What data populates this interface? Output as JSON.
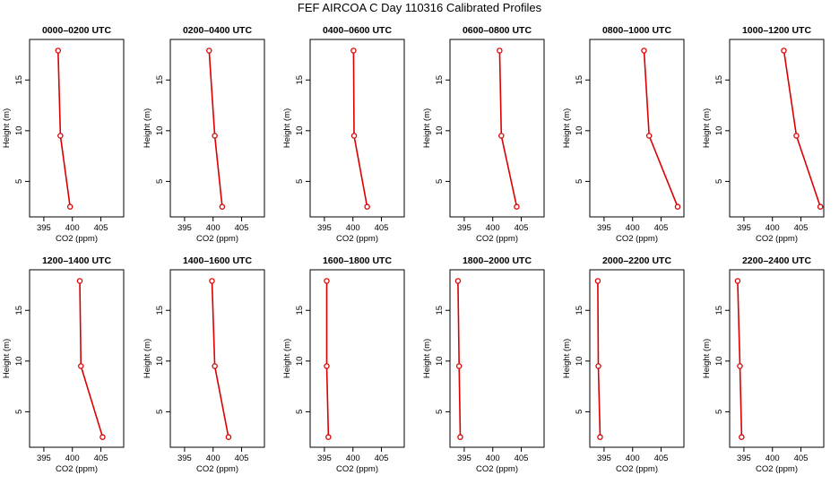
{
  "title": "FEF AIRCOA C  Day 110316  Calibrated Profiles",
  "colors": {
    "series": "#dd0000",
    "axis": "#000000"
  },
  "chart_data": [
    {
      "type": "line",
      "title": "0000–0200 UTC",
      "xlabel": "CO2 (ppm)",
      "ylabel": "Height (m)",
      "xlim": [
        392.5,
        409
      ],
      "ylim": [
        1.5,
        19
      ],
      "xticks": [
        395,
        400,
        405
      ],
      "yticks": [
        5,
        10,
        15
      ],
      "x": [
        397.5,
        397.9,
        399.6
      ],
      "y": [
        17.9,
        9.5,
        2.5
      ]
    },
    {
      "type": "line",
      "title": "0200–0400 UTC",
      "xlabel": "CO2 (ppm)",
      "ylabel": "Height (m)",
      "xlim": [
        392.5,
        409
      ],
      "ylim": [
        1.5,
        19
      ],
      "xticks": [
        395,
        400,
        405
      ],
      "yticks": [
        5,
        10,
        15
      ],
      "x": [
        399.3,
        400.3,
        401.6
      ],
      "y": [
        17.9,
        9.5,
        2.5
      ]
    },
    {
      "type": "line",
      "title": "0400–0600 UTC",
      "xlabel": "CO2 (ppm)",
      "ylabel": "Height (m)",
      "xlim": [
        392.5,
        409
      ],
      "ylim": [
        1.5,
        19
      ],
      "xticks": [
        395,
        400,
        405
      ],
      "yticks": [
        5,
        10,
        15
      ],
      "x": [
        400.1,
        400.2,
        402.5
      ],
      "y": [
        17.9,
        9.5,
        2.5
      ]
    },
    {
      "type": "line",
      "title": "0600–0800 UTC",
      "xlabel": "CO2 (ppm)",
      "ylabel": "Height (m)",
      "xlim": [
        392.5,
        409
      ],
      "ylim": [
        1.5,
        19
      ],
      "xticks": [
        395,
        400,
        405
      ],
      "yticks": [
        5,
        10,
        15
      ],
      "x": [
        401.2,
        401.5,
        404.2
      ],
      "y": [
        17.9,
        9.5,
        2.5
      ]
    },
    {
      "type": "line",
      "title": "0800–1000 UTC",
      "xlabel": "CO2 (ppm)",
      "ylabel": "Height (m)",
      "xlim": [
        392.5,
        409
      ],
      "ylim": [
        1.5,
        19
      ],
      "xticks": [
        395,
        400,
        405
      ],
      "yticks": [
        5,
        10,
        15
      ],
      "x": [
        402.0,
        402.9,
        407.9
      ],
      "y": [
        17.9,
        9.5,
        2.5
      ]
    },
    {
      "type": "line",
      "title": "1000–1200 UTC",
      "xlabel": "CO2 (ppm)",
      "ylabel": "Height (m)",
      "xlim": [
        392.5,
        409
      ],
      "ylim": [
        1.5,
        19
      ],
      "xticks": [
        395,
        400,
        405
      ],
      "yticks": [
        5,
        10,
        15
      ],
      "x": [
        402.0,
        404.2,
        408.4
      ],
      "y": [
        17.9,
        9.5,
        2.5
      ]
    },
    {
      "type": "line",
      "title": "1200–1400 UTC",
      "xlabel": "CO2 (ppm)",
      "ylabel": "Height (m)",
      "xlim": [
        392.5,
        409
      ],
      "ylim": [
        1.5,
        19
      ],
      "xticks": [
        395,
        400,
        405
      ],
      "yticks": [
        5,
        10,
        15
      ],
      "x": [
        401.3,
        401.5,
        405.3
      ],
      "y": [
        17.9,
        9.5,
        2.5
      ]
    },
    {
      "type": "line",
      "title": "1400–1600 UTC",
      "xlabel": "CO2 (ppm)",
      "ylabel": "Height (m)",
      "xlim": [
        392.5,
        409
      ],
      "ylim": [
        1.5,
        19
      ],
      "xticks": [
        395,
        400,
        405
      ],
      "yticks": [
        5,
        10,
        15
      ],
      "x": [
        399.8,
        400.3,
        402.7
      ],
      "y": [
        17.9,
        9.5,
        2.5
      ]
    },
    {
      "type": "line",
      "title": "1600–1800 UTC",
      "xlabel": "CO2 (ppm)",
      "ylabel": "Height (m)",
      "xlim": [
        392.5,
        409
      ],
      "ylim": [
        1.5,
        19
      ],
      "xticks": [
        395,
        400,
        405
      ],
      "yticks": [
        5,
        10,
        15
      ],
      "x": [
        395.4,
        395.4,
        395.7
      ],
      "y": [
        17.9,
        9.5,
        2.5
      ]
    },
    {
      "type": "line",
      "title": "1800–2000 UTC",
      "xlabel": "CO2 (ppm)",
      "ylabel": "Height (m)",
      "xlim": [
        392.5,
        409
      ],
      "ylim": [
        1.5,
        19
      ],
      "xticks": [
        395,
        400,
        405
      ],
      "yticks": [
        5,
        10,
        15
      ],
      "x": [
        393.9,
        394.1,
        394.3
      ],
      "y": [
        17.9,
        9.5,
        2.5
      ]
    },
    {
      "type": "line",
      "title": "2000–2200 UTC",
      "xlabel": "CO2 (ppm)",
      "ylabel": "Height (m)",
      "xlim": [
        392.5,
        409
      ],
      "ylim": [
        1.5,
        19
      ],
      "xticks": [
        395,
        400,
        405
      ],
      "yticks": [
        5,
        10,
        15
      ],
      "x": [
        393.9,
        394.0,
        394.3
      ],
      "y": [
        17.9,
        9.5,
        2.5
      ]
    },
    {
      "type": "line",
      "title": "2200–2400 UTC",
      "xlabel": "CO2 (ppm)",
      "ylabel": "Height (m)",
      "xlim": [
        392.5,
        409
      ],
      "ylim": [
        1.5,
        19
      ],
      "xticks": [
        395,
        400,
        405
      ],
      "yticks": [
        5,
        10,
        15
      ],
      "x": [
        393.9,
        394.3,
        394.6
      ],
      "y": [
        17.9,
        9.5,
        2.5
      ]
    }
  ]
}
